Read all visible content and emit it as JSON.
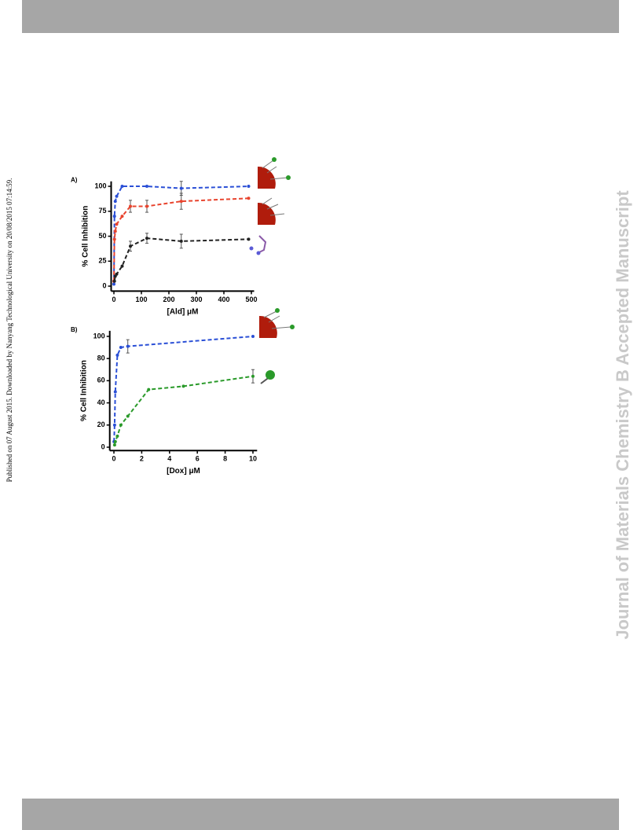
{
  "side_note": "Published on 07 August 2015. Downloaded by Nanyang Technological University on 20/08/2015 07:14:59.",
  "watermark": "Journal of Materials Chemistry B Accepted Manuscript",
  "chart_data": [
    {
      "type": "line",
      "panel_label": "A)",
      "x_label": "[Ald] μM",
      "y_label": "% Cell Inhibition",
      "xlim": [
        -10,
        510
      ],
      "xticks": [
        0,
        100,
        200,
        300,
        400,
        500
      ],
      "ylim": [
        -5,
        105
      ],
      "yticks": [
        0,
        25,
        50,
        75,
        100
      ],
      "series": [
        {
          "color": "#2a4fd6",
          "x": [
            0,
            2,
            5,
            10,
            30,
            120,
            245,
            490
          ],
          "values": [
            2,
            70,
            85,
            90,
            100,
            100,
            98,
            100
          ],
          "errors": [
            null,
            null,
            null,
            null,
            null,
            null,
            7,
            null
          ]
        },
        {
          "color": "#e8442e",
          "x": [
            0,
            2,
            5,
            10,
            30,
            60,
            120,
            245,
            490
          ],
          "values": [
            5,
            47,
            55,
            62,
            70,
            80,
            80,
            85,
            88
          ],
          "errors": [
            null,
            null,
            null,
            null,
            null,
            6,
            6,
            8,
            null
          ]
        },
        {
          "color": "#222222",
          "x": [
            2,
            5,
            10,
            30,
            60,
            120,
            245,
            490
          ],
          "values": [
            5,
            10,
            12,
            20,
            40,
            48,
            45,
            47
          ],
          "errors": [
            null,
            null,
            null,
            null,
            5,
            5,
            7,
            null
          ]
        }
      ]
    },
    {
      "type": "line",
      "panel_label": "B)",
      "x_label": "[Dox] μM",
      "y_label": "% Cell Inhibition",
      "xlim": [
        -0.3,
        10.3
      ],
      "xticks": [
        0,
        2,
        4,
        6,
        8,
        10
      ],
      "ylim": [
        -3,
        105
      ],
      "yticks": [
        0,
        20,
        40,
        60,
        80,
        100
      ],
      "series": [
        {
          "color": "#2a4fd6",
          "x": [
            0.01,
            0.05,
            0.1,
            0.25,
            0.5,
            1,
            10
          ],
          "values": [
            5,
            20,
            50,
            83,
            90,
            91,
            100
          ],
          "errors": [
            null,
            null,
            null,
            null,
            null,
            6,
            null
          ]
        },
        {
          "color": "#2a9a2a",
          "x": [
            0.05,
            0.1,
            0.25,
            0.5,
            1,
            2.5,
            5,
            10
          ],
          "values": [
            2,
            5,
            10,
            20,
            28,
            52,
            55,
            64
          ],
          "errors": [
            null,
            null,
            null,
            null,
            null,
            null,
            null,
            6
          ]
        }
      ]
    }
  ]
}
